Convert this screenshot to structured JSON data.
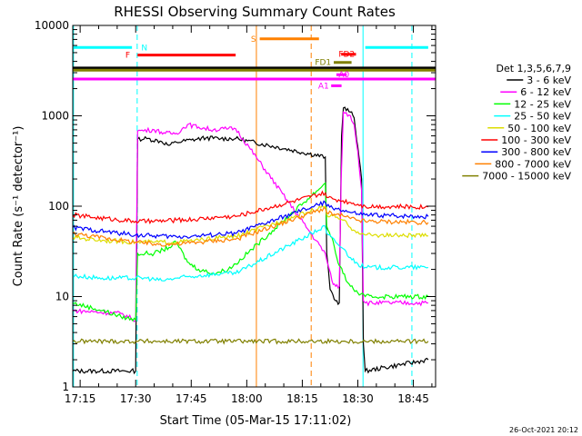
{
  "chart_data": {
    "type": "line",
    "title": "RHESSI Observing Summary Count Rates",
    "xlabel": "Start Time (05-Mar-15 17:11:02)",
    "ylabel": "Count Rate (s⁻¹ detector⁻¹)",
    "ylog": true,
    "ylim": [
      1,
      10000
    ],
    "xlim_minutes": [
      2,
      100
    ],
    "x_ticks": [
      {
        "m": 4,
        "label": "17:15"
      },
      {
        "m": 19,
        "label": "17:30"
      },
      {
        "m": 34,
        "label": "17:45"
      },
      {
        "m": 49,
        "label": "18:00"
      },
      {
        "m": 64,
        "label": "18:15"
      },
      {
        "m": 79,
        "label": "18:30"
      },
      {
        "m": 94,
        "label": "18:45"
      }
    ],
    "y_ticks": [
      {
        "v": 1,
        "label": "1"
      },
      {
        "v": 10,
        "label": "10"
      },
      {
        "v": 100,
        "label": "100"
      },
      {
        "v": 1000,
        "label": "1000"
      },
      {
        "v": 10000,
        "label": "10000"
      }
    ],
    "legend_header": "Det 1,3,5,6,7,9",
    "legend_placement": "right",
    "timestamp": "26-Oct-2021 20:12",
    "vlines": [
      {
        "m": 2.2,
        "color": "#00ffff",
        "dashed": false
      },
      {
        "m": 19.4,
        "color": "#00ffff",
        "dashed": true
      },
      {
        "m": 51.6,
        "color": "#ff8000",
        "dashed": false
      },
      {
        "m": 66.4,
        "color": "#ff8000",
        "dashed": true
      },
      {
        "m": 80.4,
        "color": "#00ffff",
        "dashed": false
      },
      {
        "m": 93.6,
        "color": "#00ffff",
        "dashed": true
      }
    ],
    "flag_bars": [
      {
        "label": "N",
        "color": "#00ffff",
        "y": 5700,
        "segments": [
          [
            2,
            18
          ],
          [
            81,
            98
          ]
        ],
        "label_m": 20.5,
        "label_side": "right"
      },
      {
        "label": "F",
        "color": "#ff0000",
        "y": 4700,
        "segments": [
          [
            19.5,
            46
          ]
        ],
        "label_m": 17.5,
        "label_side": "left"
      },
      {
        "label": "S",
        "color": "#ff8000",
        "y": 7100,
        "segments": [
          [
            52.5,
            68.5
          ]
        ],
        "label_m": 51.5,
        "label_side": "left"
      },
      {
        "label": "FD1",
        "color": "#808000",
        "y": 3900,
        "segments": [
          [
            72.5,
            77.3
          ]
        ],
        "label_m": 71.8,
        "label_side": "left"
      },
      {
        "label": "FD2",
        "color": "#ff0000",
        "y": 4800,
        "segments": [
          [
            74.5,
            78.5
          ]
        ],
        "label_m": 73.8,
        "label_side": "right"
      },
      {
        "label": "A0",
        "color": "#ff00ff",
        "y": 2850,
        "segments": [
          [
            73.2,
            76.0
          ]
        ],
        "label_m": 73.8,
        "label_side": "right"
      },
      {
        "label": "A1",
        "color": "#ff00ff",
        "y": 2150,
        "segments": [
          [
            71.8,
            74.6
          ]
        ],
        "label_m": 71.2,
        "label_side": "left"
      }
    ],
    "long_bars": [
      {
        "color": "#000000",
        "y": 3380
      },
      {
        "color": "#808000",
        "y": 3200
      },
      {
        "color": "#ff00ff",
        "y": 2550
      }
    ],
    "series": [
      {
        "name": "3 - 6 keV",
        "color": "#000000",
        "points": [
          [
            2,
            1.5
          ],
          [
            19,
            1.5
          ],
          [
            19.5,
            550
          ],
          [
            22,
            560
          ],
          [
            26,
            520
          ],
          [
            28,
            470
          ],
          [
            30,
            510
          ],
          [
            34,
            540
          ],
          [
            38,
            570
          ],
          [
            42,
            560
          ],
          [
            46,
            560
          ],
          [
            70.2,
            350
          ],
          [
            70.6,
            30
          ],
          [
            71.5,
            12
          ],
          [
            73,
            9
          ],
          [
            74,
            8.5
          ],
          [
            74.6,
            600
          ],
          [
            75.1,
            1220
          ],
          [
            77,
            1100
          ],
          [
            78,
            950
          ],
          [
            79,
            450
          ],
          [
            80,
            200
          ],
          [
            80.5,
            3
          ],
          [
            81,
            1.5
          ],
          [
            98,
            2
          ]
        ]
      },
      {
        "name": "6 - 12 keV",
        "color": "#ff00ff",
        "points": [
          [
            2,
            7
          ],
          [
            15,
            6.5
          ],
          [
            19,
            5.5
          ],
          [
            19.5,
            680
          ],
          [
            24,
            700
          ],
          [
            27,
            640
          ],
          [
            30,
            640
          ],
          [
            33,
            800
          ],
          [
            36,
            750
          ],
          [
            40,
            700
          ],
          [
            44,
            720
          ],
          [
            46,
            720
          ],
          [
            70.2,
            30
          ],
          [
            71,
            22
          ],
          [
            72,
            15
          ],
          [
            73,
            13
          ],
          [
            74,
            13
          ],
          [
            74.5,
            200
          ],
          [
            75.1,
            1100
          ],
          [
            77,
            1000
          ],
          [
            78,
            800
          ],
          [
            79,
            400
          ],
          [
            80,
            150
          ],
          [
            80.5,
            9
          ],
          [
            81,
            8.5
          ],
          [
            98,
            8.5
          ]
        ]
      },
      {
        "name": "12 - 25 keV",
        "color": "#00ff00",
        "points": [
          [
            2,
            8.5
          ],
          [
            10,
            7
          ],
          [
            15,
            6
          ],
          [
            19,
            5.5
          ],
          [
            19.5,
            30
          ],
          [
            24,
            30
          ],
          [
            28,
            35
          ],
          [
            30,
            40
          ],
          [
            33,
            24
          ],
          [
            36,
            20
          ],
          [
            40,
            18
          ],
          [
            44,
            20
          ],
          [
            46,
            23
          ],
          [
            70.2,
            180
          ],
          [
            70.6,
            60
          ],
          [
            72,
            45
          ],
          [
            73,
            30
          ],
          [
            74,
            22
          ],
          [
            75,
            18
          ],
          [
            77,
            13
          ],
          [
            79,
            11
          ],
          [
            81,
            10
          ],
          [
            98,
            10
          ]
        ]
      },
      {
        "name": "25 - 50 keV",
        "color": "#00ffff",
        "points": [
          [
            2,
            17
          ],
          [
            10,
            16
          ],
          [
            19,
            16
          ],
          [
            22,
            16
          ],
          [
            26,
            15
          ],
          [
            30,
            16
          ],
          [
            36,
            17
          ],
          [
            42,
            18
          ],
          [
            46,
            18
          ],
          [
            70.2,
            60
          ],
          [
            70.6,
            50
          ],
          [
            73,
            40
          ],
          [
            75,
            34
          ],
          [
            77,
            27
          ],
          [
            79,
            23
          ],
          [
            81,
            21
          ],
          [
            98,
            21
          ]
        ]
      },
      {
        "name": "50 - 100 keV",
        "color": "#dddd00",
        "points": [
          [
            2,
            45
          ],
          [
            10,
            42
          ],
          [
            19,
            40
          ],
          [
            24,
            40
          ],
          [
            30,
            40
          ],
          [
            36,
            42
          ],
          [
            42,
            45
          ],
          [
            46,
            46
          ],
          [
            70.2,
            100
          ],
          [
            70.6,
            80
          ],
          [
            73,
            75
          ],
          [
            75,
            70
          ],
          [
            77,
            58
          ],
          [
            79,
            52
          ],
          [
            81,
            48
          ],
          [
            98,
            47
          ]
        ]
      },
      {
        "name": "100 - 300 keV",
        "color": "#ff0000",
        "points": [
          [
            2,
            80
          ],
          [
            8,
            75
          ],
          [
            19,
            68
          ],
          [
            24,
            68
          ],
          [
            30,
            70
          ],
          [
            36,
            72
          ],
          [
            42,
            76
          ],
          [
            46,
            77
          ],
          [
            70.2,
            140
          ],
          [
            70.6,
            125
          ],
          [
            73,
            118
          ],
          [
            75,
            115
          ],
          [
            77,
            110
          ],
          [
            79,
            105
          ],
          [
            81,
            100
          ],
          [
            98,
            98
          ]
        ]
      },
      {
        "name": "300 - 800 keV",
        "color": "#0000ff",
        "points": [
          [
            2,
            58
          ],
          [
            8,
            54
          ],
          [
            19,
            48
          ],
          [
            24,
            47
          ],
          [
            30,
            46
          ],
          [
            36,
            47
          ],
          [
            42,
            49
          ],
          [
            46,
            50
          ],
          [
            70.2,
            110
          ],
          [
            70.6,
            100
          ],
          [
            73,
            95
          ],
          [
            75,
            90
          ],
          [
            77,
            85
          ],
          [
            79,
            82
          ],
          [
            81,
            80
          ],
          [
            98,
            77
          ]
        ]
      },
      {
        "name": "800 - 7000 keV",
        "color": "#ff8000",
        "points": [
          [
            2,
            50
          ],
          [
            8,
            46
          ],
          [
            19,
            40
          ],
          [
            24,
            38
          ],
          [
            30,
            38
          ],
          [
            36,
            40
          ],
          [
            42,
            42
          ],
          [
            46,
            43
          ],
          [
            70.2,
            95
          ],
          [
            70.6,
            85
          ],
          [
            73,
            80
          ],
          [
            75,
            78
          ],
          [
            77,
            73
          ],
          [
            79,
            70
          ],
          [
            81,
            68
          ],
          [
            98,
            66
          ]
        ]
      },
      {
        "name": "7000 - 15000 keV",
        "color": "#808000",
        "points": [
          [
            2,
            3.2
          ],
          [
            19,
            3.2
          ],
          [
            46,
            3.2
          ],
          [
            70.2,
            3.2
          ],
          [
            81,
            3.2
          ],
          [
            98,
            3.2
          ]
        ]
      }
    ]
  }
}
